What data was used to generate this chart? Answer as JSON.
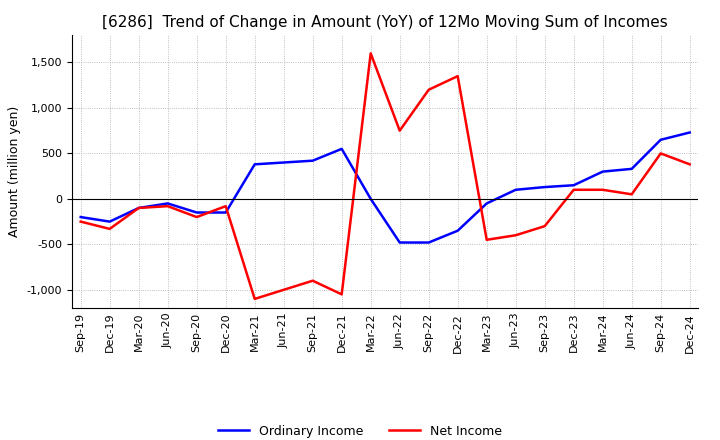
{
  "title": "[6286]  Trend of Change in Amount (YoY) of 12Mo Moving Sum of Incomes",
  "ylabel": "Amount (million yen)",
  "x_labels": [
    "Sep-19",
    "Dec-19",
    "Mar-20",
    "Jun-20",
    "Sep-20",
    "Dec-20",
    "Mar-21",
    "Jun-21",
    "Sep-21",
    "Dec-21",
    "Mar-22",
    "Jun-22",
    "Sep-22",
    "Dec-22",
    "Mar-23",
    "Jun-23",
    "Sep-23",
    "Dec-23",
    "Mar-24",
    "Jun-24",
    "Sep-24",
    "Dec-24"
  ],
  "ordinary_income": [
    -200,
    -250,
    -100,
    -50,
    -150,
    -150,
    380,
    400,
    420,
    550,
    0,
    -480,
    -480,
    -350,
    -50,
    100,
    130,
    150,
    300,
    330,
    650,
    730
  ],
  "net_income": [
    -250,
    -330,
    -100,
    -80,
    -200,
    -80,
    -1100,
    -1000,
    -900,
    -1050,
    1600,
    750,
    1200,
    1350,
    -450,
    -400,
    -300,
    100,
    100,
    50,
    500,
    380
  ],
  "ordinary_color": "#0000ff",
  "net_color": "#ff0000",
  "ylim": [
    -1200,
    1800
  ],
  "yticks": [
    -1000,
    -500,
    0,
    500,
    1000,
    1500
  ],
  "background_color": "#ffffff",
  "grid_color": "#aaaaaa",
  "title_fontsize": 11,
  "axis_fontsize": 9,
  "tick_fontsize": 8,
  "legend_fontsize": 9,
  "line_width": 1.8
}
